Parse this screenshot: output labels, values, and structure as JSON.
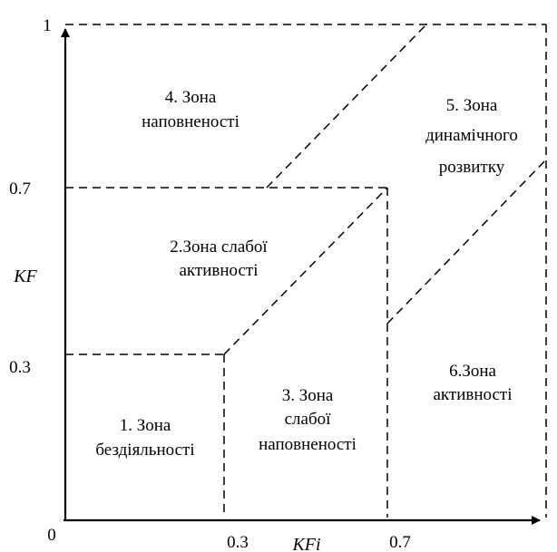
{
  "axes": {
    "x_title": "KFi",
    "y_title": "KF",
    "origin_label": "0",
    "x_ticks": [
      "0.3",
      "0.7"
    ],
    "y_ticks": [
      "0.3",
      "0.7",
      "1"
    ]
  },
  "zones": {
    "zone1": {
      "line1": "1. Зона",
      "line2": "бездіяльності"
    },
    "zone2": {
      "line1": "2.Зона слабої",
      "line2": "активності"
    },
    "zone3": {
      "line1": "3. Зона",
      "line2": "слабої",
      "line3": "наповненості"
    },
    "zone4": {
      "line1": "4. Зона",
      "line2": "наповненості"
    },
    "zone5": {
      "line1": "5. Зона",
      "line2": "динамічного",
      "line3": "розвитку"
    },
    "zone6": {
      "line1": "6.Зона",
      "line2": "активності"
    }
  }
}
